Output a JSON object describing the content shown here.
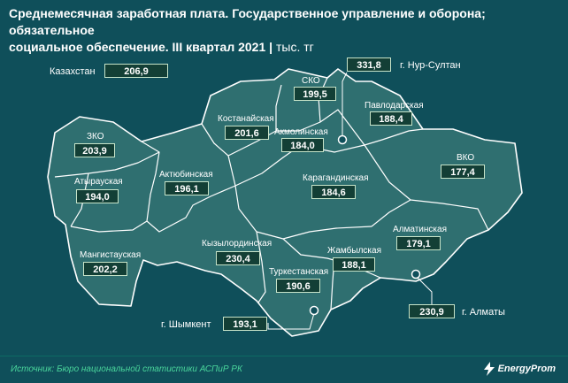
{
  "header": {
    "title_line1": "Среднемесячная заработная плата. Государственное управление и оборона; обязательное",
    "title_line2": "социальное обеспечение. III квартал 2021",
    "unit": "тыс. тг"
  },
  "kazakhstan": {
    "name": "Казахстан",
    "value": "206,9"
  },
  "regions": [
    {
      "name": "ЗКО",
      "value": "203,9"
    },
    {
      "name": "Атырауская",
      "value": "194,0"
    },
    {
      "name": "Актюбинская",
      "value": "196,1"
    },
    {
      "name": "Мангистауская",
      "value": "202,2"
    },
    {
      "name": "Костанайская",
      "value": "201,6"
    },
    {
      "name": "СКО",
      "value": "199,5"
    },
    {
      "name": "Акмолинская",
      "value": "184,0"
    },
    {
      "name": "Павлодарская",
      "value": "188,4"
    },
    {
      "name": "Карагандинская",
      "value": "184,6"
    },
    {
      "name": "ВКО",
      "value": "177,4"
    },
    {
      "name": "Кызылординская",
      "value": "230,4"
    },
    {
      "name": "Туркестанская",
      "value": "190,6"
    },
    {
      "name": "Жамбылская",
      "value": "188,1"
    },
    {
      "name": "Алматинская",
      "value": "179,1"
    }
  ],
  "cities": [
    {
      "name": "г. Нур-Султан",
      "value": "331,8"
    },
    {
      "name": "г. Шымкент",
      "value": "193,1"
    },
    {
      "name": "г. Алматы",
      "value": "230,9"
    }
  ],
  "footer": {
    "source": "Источник: Бюро национальной статистики АСПиР РК",
    "logo": "EnergyProm",
    "logo_icon": "lightning-icon"
  },
  "colors": {
    "background": "#0f4f5a",
    "map_fill": "#2f6f70",
    "box_fill": "#133f36",
    "box_border": "#c7e4c9",
    "source_text": "#4ad69c"
  }
}
